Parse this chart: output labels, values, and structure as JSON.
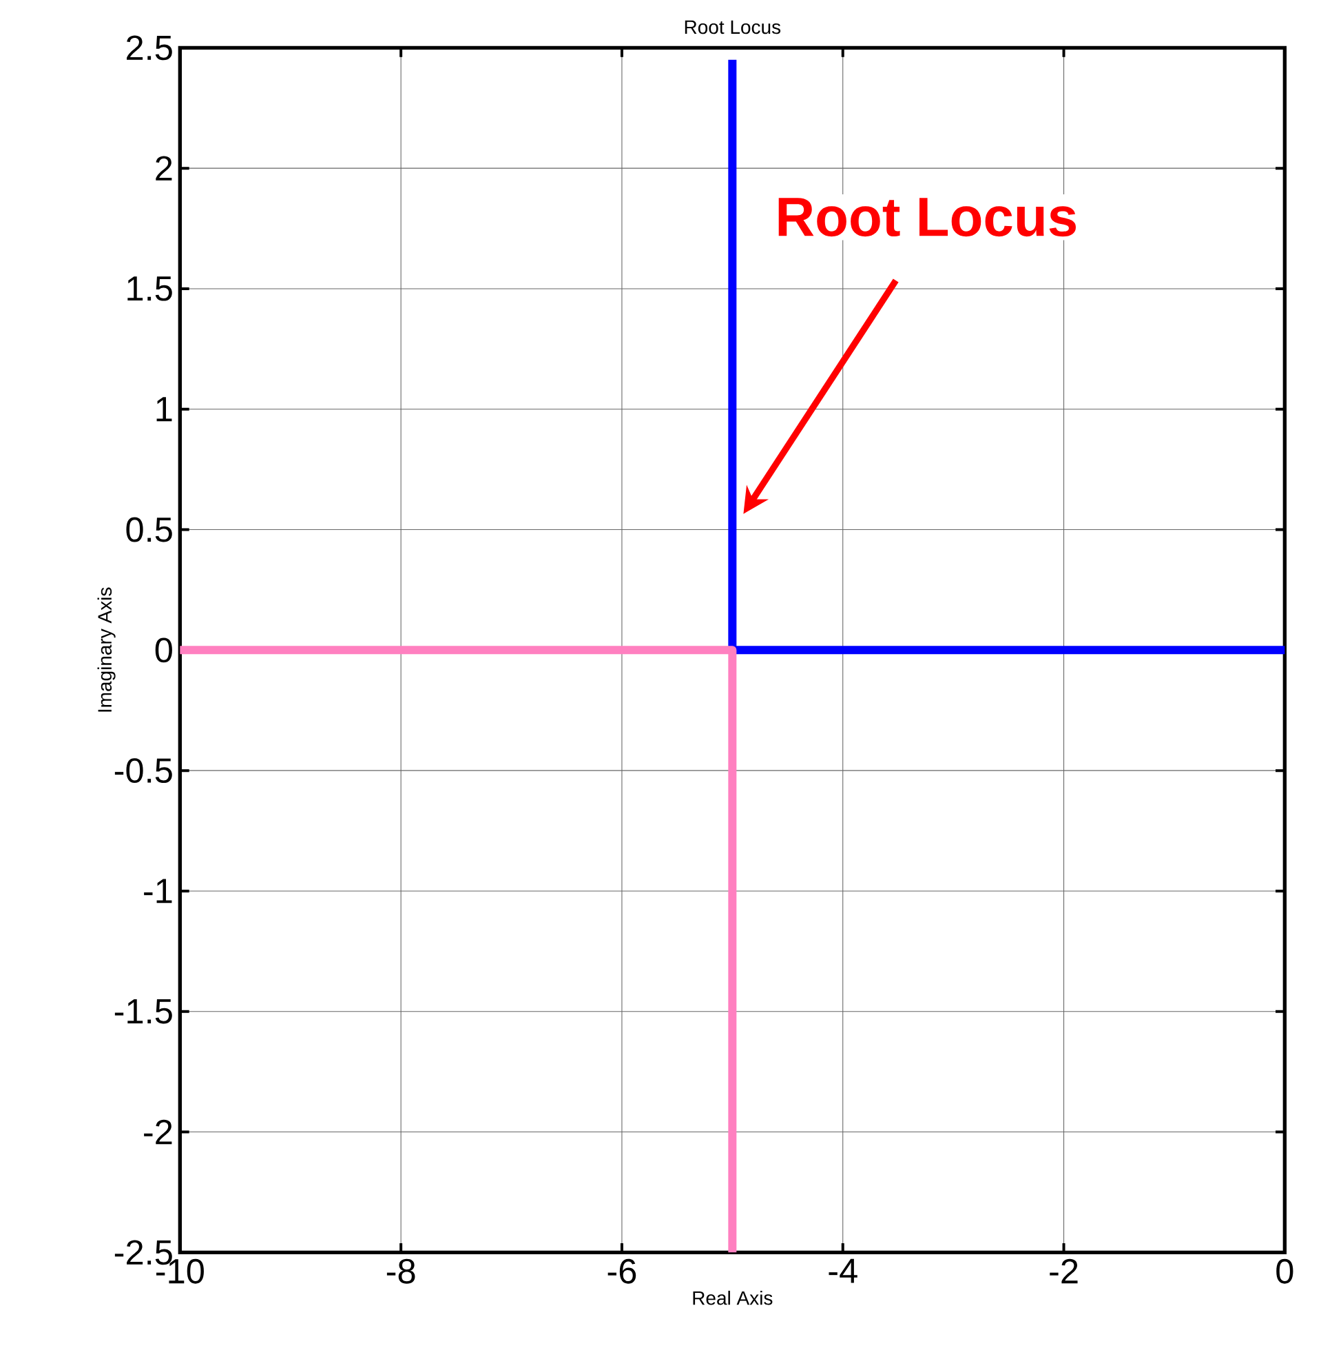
{
  "chart_data": {
    "type": "line",
    "title": "Root Locus",
    "xlabel": "Real Axis",
    "ylabel": "Imaginary Axis",
    "series": [
      {
        "color": "#0000ff",
        "x": [
          0,
          -5,
          -5
        ],
        "values": [
          0,
          0,
          2.45
        ]
      },
      {
        "color": "#ff80c0",
        "x": [
          -10,
          -5,
          -5
        ],
        "values": [
          0,
          0,
          -2.5
        ]
      }
    ],
    "xlim": [
      -10,
      0
    ],
    "xticks": [
      -10,
      -8,
      -6,
      -4,
      -2,
      0
    ],
    "ylim": [
      -2.5,
      2.5
    ],
    "yticks": [
      -2.5,
      -2,
      -1.5,
      -1,
      -0.5,
      0,
      0.5,
      1,
      1.5,
      2,
      2.5
    ],
    "grid": true,
    "marker": "none",
    "line_style": "solid",
    "annotations": [
      "Root Locus"
    ]
  }
}
